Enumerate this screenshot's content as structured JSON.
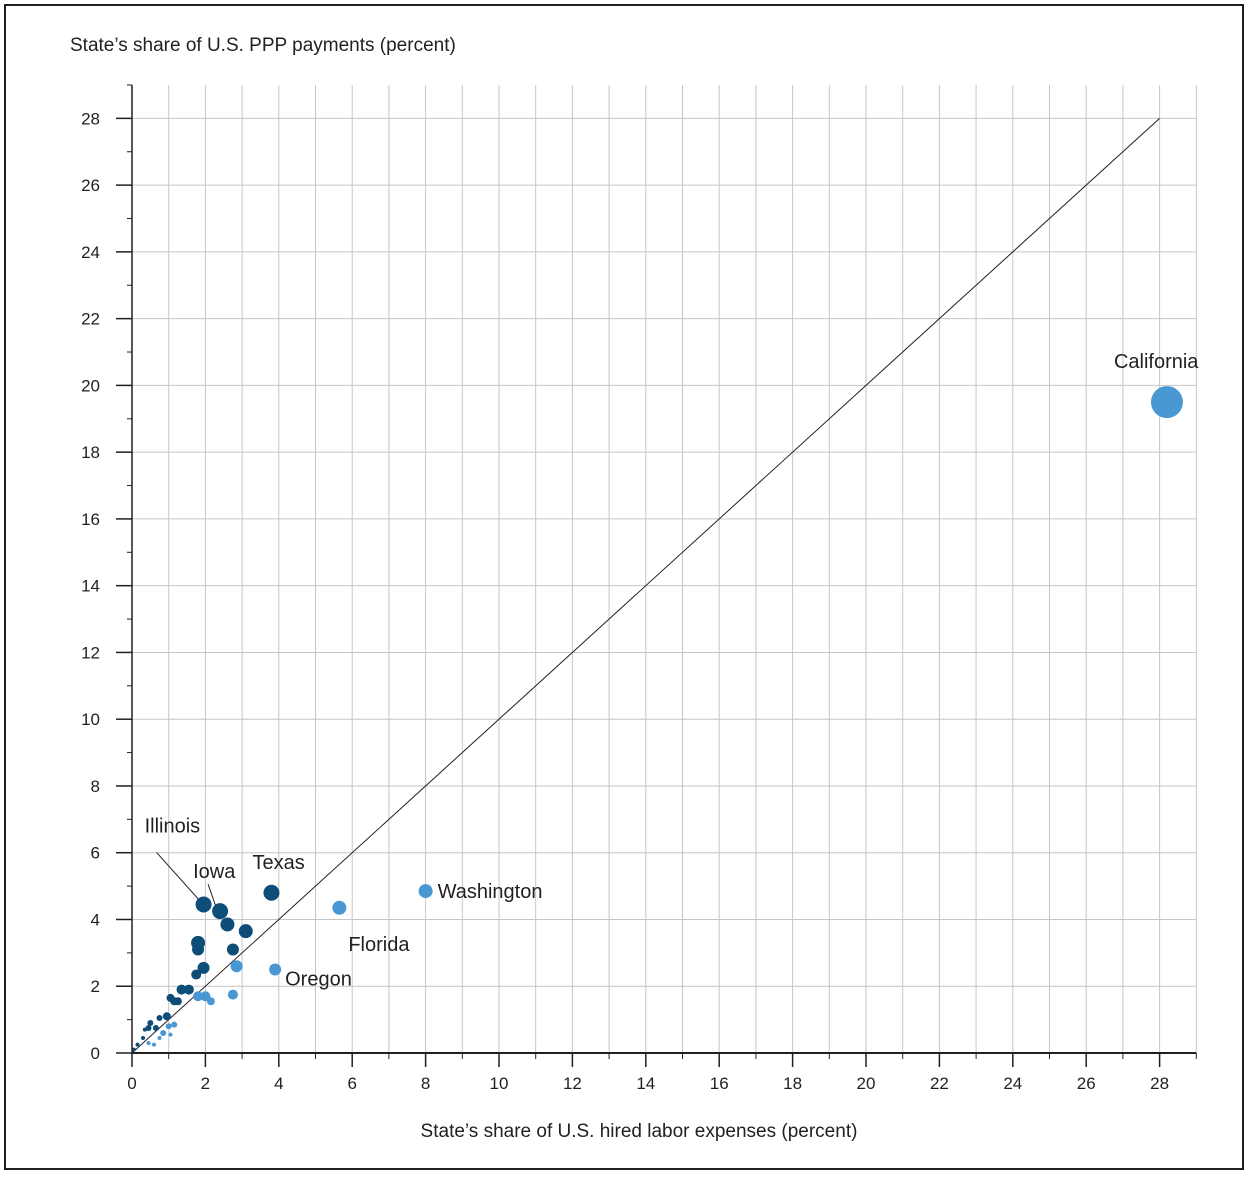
{
  "chart_data": {
    "type": "scatter",
    "ylabel": "State’s share of U.S. PPP payments (percent)",
    "xlabel": "State’s share of U.S. hired labor expenses (percent)",
    "xlim": [
      0,
      29
    ],
    "ylim": [
      0,
      29
    ],
    "x_ticks": [
      0,
      2,
      4,
      6,
      8,
      10,
      12,
      14,
      16,
      18,
      20,
      22,
      24,
      26,
      28
    ],
    "y_ticks": [
      0,
      2,
      4,
      6,
      8,
      10,
      12,
      14,
      16,
      18,
      20,
      22,
      24,
      26,
      28
    ],
    "grid": true,
    "reference_line": {
      "from": [
        0,
        0
      ],
      "to": [
        28,
        28
      ]
    },
    "colors": {
      "above_line": "#0d4d77",
      "below_line": "#4a98d3",
      "grid": "#c6c6c6",
      "axis": "#231f20"
    },
    "points": [
      {
        "x": 28.2,
        "y": 19.5,
        "group": "below_line",
        "label": "California",
        "size": 16
      },
      {
        "x": 8.0,
        "y": 4.85,
        "group": "below_line",
        "label": "Washington",
        "size": 7
      },
      {
        "x": 5.65,
        "y": 4.35,
        "group": "below_line",
        "label": "Florida",
        "size": 7
      },
      {
        "x": 3.9,
        "y": 2.5,
        "group": "below_line",
        "label": "Oregon",
        "size": 6
      },
      {
        "x": 3.8,
        "y": 4.8,
        "group": "above_line",
        "label": "Texas",
        "size": 8
      },
      {
        "x": 1.95,
        "y": 4.45,
        "group": "above_line",
        "label": "Illinois",
        "size": 8
      },
      {
        "x": 2.4,
        "y": 4.25,
        "group": "above_line",
        "label": "Iowa",
        "size": 8
      },
      {
        "x": 2.6,
        "y": 3.85,
        "group": "above_line",
        "size": 7
      },
      {
        "x": 3.1,
        "y": 3.65,
        "group": "above_line",
        "size": 7
      },
      {
        "x": 1.8,
        "y": 3.3,
        "group": "above_line",
        "size": 7
      },
      {
        "x": 1.8,
        "y": 3.1,
        "group": "above_line",
        "size": 6
      },
      {
        "x": 2.75,
        "y": 3.1,
        "group": "above_line",
        "size": 6
      },
      {
        "x": 1.95,
        "y": 2.55,
        "group": "above_line",
        "size": 6
      },
      {
        "x": 1.75,
        "y": 2.35,
        "group": "above_line",
        "size": 5
      },
      {
        "x": 1.35,
        "y": 1.9,
        "group": "above_line",
        "size": 5
      },
      {
        "x": 1.55,
        "y": 1.9,
        "group": "above_line",
        "size": 5
      },
      {
        "x": 1.05,
        "y": 1.65,
        "group": "above_line",
        "size": 4
      },
      {
        "x": 1.15,
        "y": 1.55,
        "group": "above_line",
        "size": 4
      },
      {
        "x": 1.25,
        "y": 1.55,
        "group": "above_line",
        "size": 4
      },
      {
        "x": 0.95,
        "y": 1.1,
        "group": "above_line",
        "size": 4
      },
      {
        "x": 0.75,
        "y": 1.05,
        "group": "above_line",
        "size": 3
      },
      {
        "x": 0.5,
        "y": 0.9,
        "group": "above_line",
        "size": 3
      },
      {
        "x": 0.45,
        "y": 0.75,
        "group": "above_line",
        "size": 3
      },
      {
        "x": 0.65,
        "y": 0.75,
        "group": "above_line",
        "size": 3
      },
      {
        "x": 0.35,
        "y": 0.7,
        "group": "above_line",
        "size": 2
      },
      {
        "x": 0.3,
        "y": 0.45,
        "group": "above_line",
        "size": 2
      },
      {
        "x": 0.15,
        "y": 0.25,
        "group": "above_line",
        "size": 2
      },
      {
        "x": 0.05,
        "y": 0.1,
        "group": "above_line",
        "size": 2
      },
      {
        "x": 2.85,
        "y": 2.6,
        "group": "below_line",
        "size": 6
      },
      {
        "x": 2.75,
        "y": 1.75,
        "group": "below_line",
        "size": 5
      },
      {
        "x": 1.8,
        "y": 1.7,
        "group": "below_line",
        "size": 5
      },
      {
        "x": 2.0,
        "y": 1.7,
        "group": "below_line",
        "size": 5
      },
      {
        "x": 2.15,
        "y": 1.55,
        "group": "below_line",
        "size": 4
      },
      {
        "x": 1.15,
        "y": 0.85,
        "group": "below_line",
        "size": 3
      },
      {
        "x": 1.0,
        "y": 0.8,
        "group": "below_line",
        "size": 3
      },
      {
        "x": 0.85,
        "y": 0.6,
        "group": "below_line",
        "size": 3
      },
      {
        "x": 1.05,
        "y": 0.55,
        "group": "below_line",
        "size": 2
      },
      {
        "x": 0.75,
        "y": 0.45,
        "group": "below_line",
        "size": 2
      },
      {
        "x": 0.6,
        "y": 0.25,
        "group": "below_line",
        "size": 2
      },
      {
        "x": 0.45,
        "y": 0.3,
        "group": "below_line",
        "size": 2
      }
    ]
  }
}
